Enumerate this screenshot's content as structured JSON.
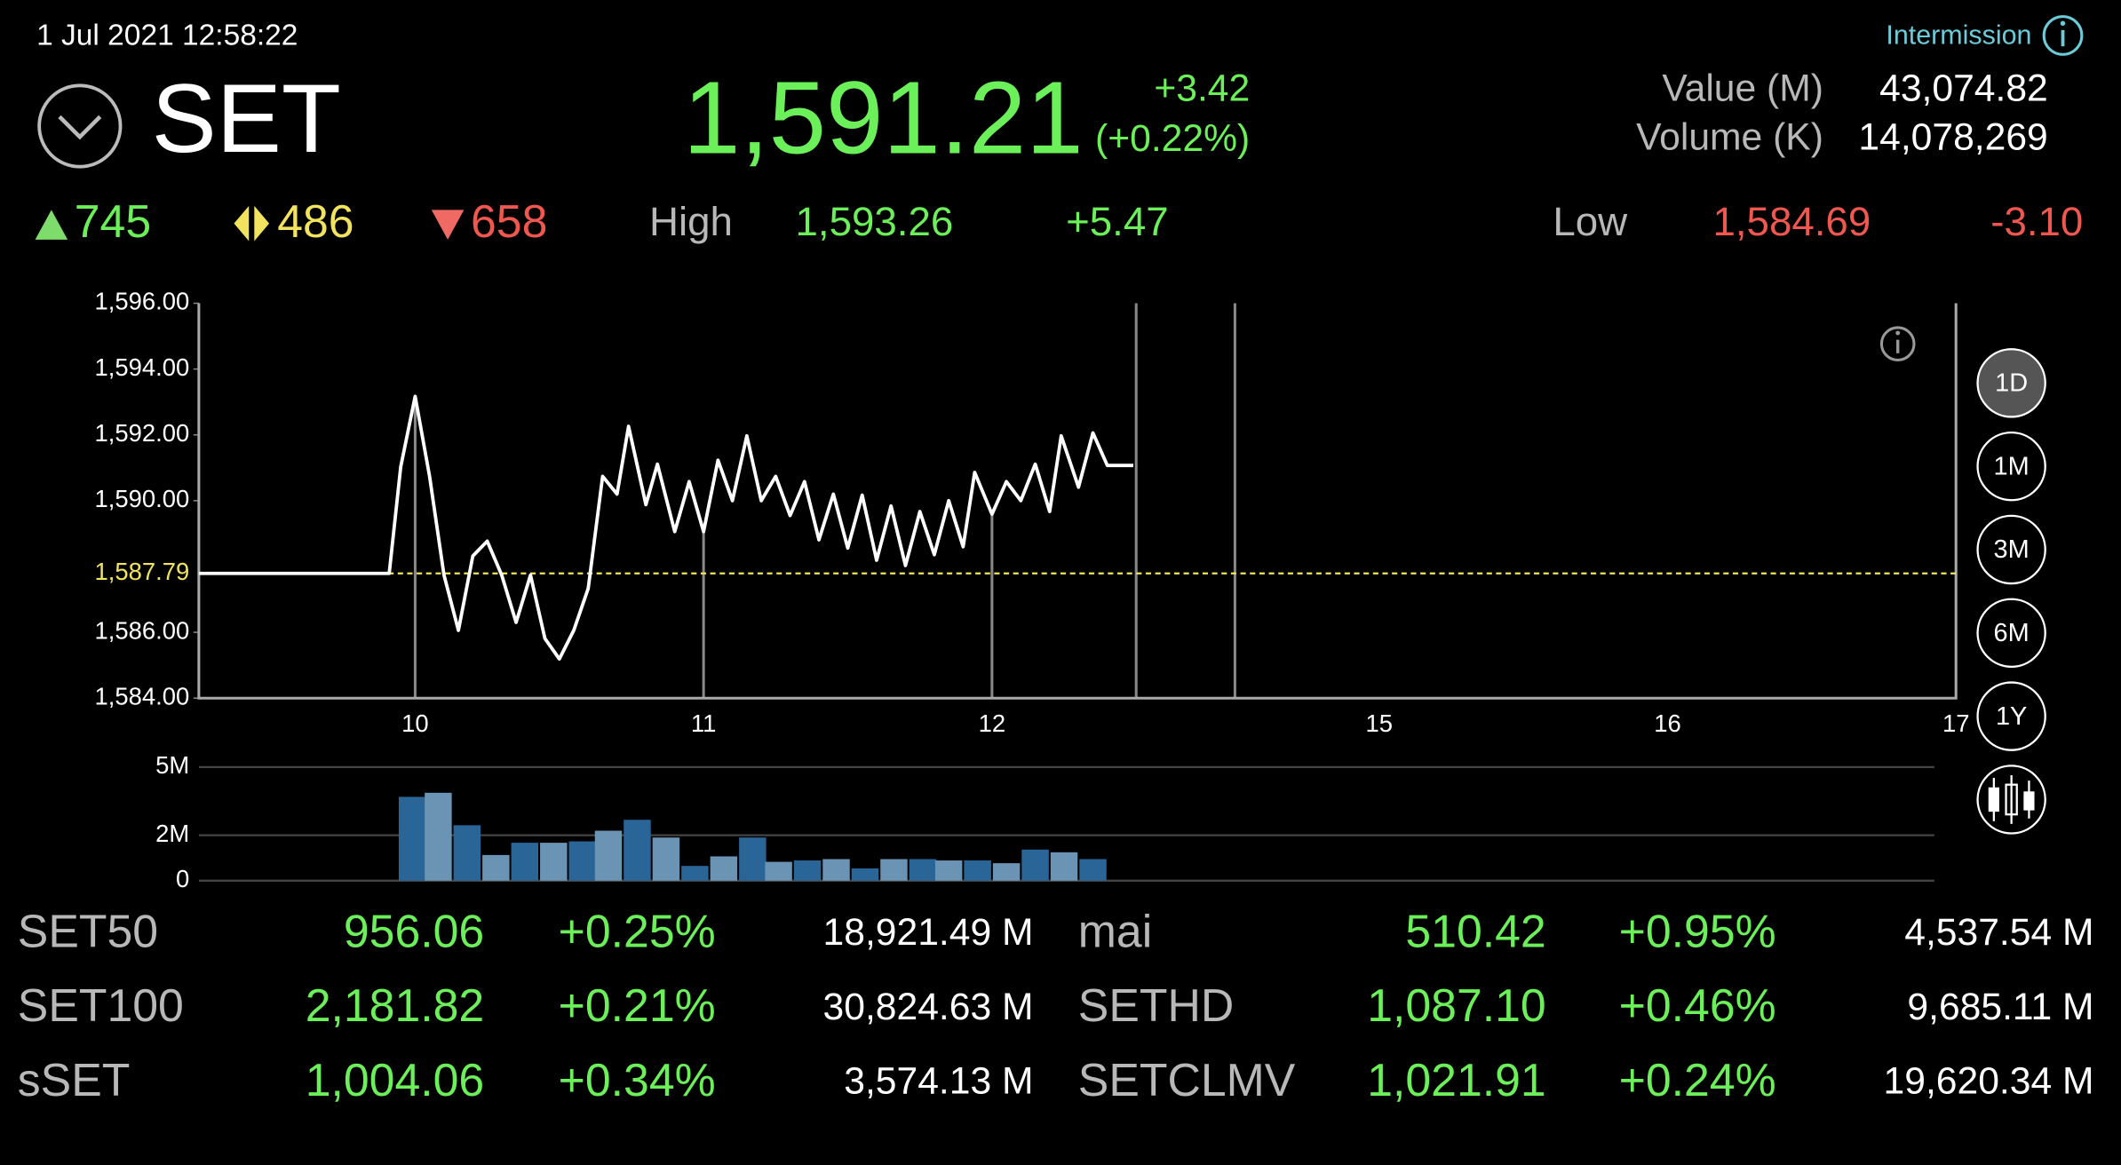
{
  "status_bar": {
    "datetime": "1 Jul 2021 12:58:22",
    "market_status": "Intermission"
  },
  "header": {
    "symbol": "SET",
    "last": "1,591.21",
    "change": "+3.42",
    "change_pct": "(+0.22%)",
    "value_label": "Value (M)",
    "value": "43,074.82",
    "volume_label": "Volume (K)",
    "volume": "14,078,269"
  },
  "breadth": {
    "up": "745",
    "unchanged": "486",
    "down": "658"
  },
  "range": {
    "high_label": "High",
    "high": "1,593.26",
    "high_change": "+5.47",
    "low_label": "Low",
    "low": "1,584.69",
    "low_change": "-3.10"
  },
  "chart_data": [
    {
      "type": "line",
      "x": [
        9.25,
        9.91,
        9.95,
        10.0,
        10.05,
        10.1,
        10.15,
        10.2,
        10.25,
        10.3,
        10.35,
        10.4,
        10.45,
        10.5,
        10.55,
        10.6,
        10.65,
        10.7,
        10.74,
        10.8,
        10.84,
        10.9,
        10.95,
        11.0,
        11.05,
        11.1,
        11.15,
        11.2,
        11.25,
        11.3,
        11.35,
        11.4,
        11.45,
        11.5,
        11.55,
        11.6,
        11.65,
        11.7,
        11.75,
        11.8,
        11.85,
        11.9,
        11.94,
        12.0,
        12.05,
        12.1,
        12.15,
        12.2,
        12.24,
        12.3,
        12.35,
        12.4,
        12.49
      ],
      "series": [
        {
          "color": "#ffffff",
          "values": [
            1587.79,
            1587.79,
            1591.03,
            1593.17,
            1590.74,
            1587.74,
            1586.06,
            1588.32,
            1588.77,
            1587.74,
            1586.3,
            1587.74,
            1585.81,
            1585.19,
            1586.06,
            1587.33,
            1590.74,
            1590.2,
            1592.26,
            1589.88,
            1591.11,
            1589.06,
            1590.58,
            1589.06,
            1591.23,
            1590.0,
            1591.97,
            1590.0,
            1590.74,
            1589.55,
            1590.58,
            1588.81,
            1590.2,
            1588.56,
            1590.17,
            1588.19,
            1589.84,
            1588.03,
            1589.67,
            1588.36,
            1590.0,
            1588.6,
            1590.86,
            1589.59,
            1590.58,
            1590.0,
            1591.11,
            1589.67,
            1591.97,
            1590.41,
            1592.06,
            1591.07,
            1591.07
          ]
        }
      ],
      "xlim": [
        9.25,
        17
      ],
      "xticks": [
        10,
        11,
        12,
        15,
        16,
        17
      ],
      "breaks": [
        12.5,
        14.5
      ],
      "ylim": [
        1584,
        1596
      ],
      "yticks": [
        {
          "value": 1584,
          "label": "1,584.00"
        },
        {
          "value": 1586,
          "label": "1,586.00"
        },
        {
          "value": 1590,
          "label": "1,590.00"
        },
        {
          "value": 1592,
          "label": "1,592.00"
        },
        {
          "value": 1594,
          "label": "1,594.00"
        },
        {
          "value": 1596,
          "label": "1,596.00"
        }
      ],
      "reference": {
        "value": 1587.79,
        "label": "1,587.79",
        "color": "#f2e35e"
      }
    },
    {
      "type": "bar",
      "x": [
        9.99,
        10.08,
        10.18,
        10.28,
        10.38,
        10.48,
        10.58,
        10.67,
        10.77,
        10.87,
        10.97,
        11.07,
        11.17,
        11.26,
        11.36,
        11.46,
        11.56,
        11.66,
        11.76,
        11.85,
        11.95,
        12.05,
        12.15,
        12.25,
        12.35
      ],
      "values": [
        3.69,
        3.87,
        2.44,
        1.13,
        1.67,
        1.67,
        1.73,
        2.2,
        2.68,
        1.9,
        0.65,
        1.07,
        1.9,
        0.83,
        0.89,
        0.95,
        0.54,
        0.95,
        0.95,
        0.89,
        0.89,
        0.77,
        1.37,
        1.25,
        0.95
      ],
      "colors": [
        "#2a6598",
        "#6a93b4"
      ],
      "ylim": [
        0,
        5
      ],
      "yticks": [
        0,
        {
          "value": 2,
          "label": "2M"
        },
        {
          "value": 5,
          "label": "5M"
        }
      ]
    }
  ],
  "timeframes": [
    "1D",
    "1M",
    "3M",
    "6M",
    "1Y"
  ],
  "selected_timeframe": "1D",
  "indices": [
    {
      "name": "SET50",
      "value": "956.06",
      "change_pct": "+0.25%",
      "turnover": "18,921.49 M"
    },
    {
      "name": "SET100",
      "value": "2,181.82",
      "change_pct": "+0.21%",
      "turnover": "30,824.63 M"
    },
    {
      "name": "sSET",
      "value": "1,004.06",
      "change_pct": "+0.34%",
      "turnover": "3,574.13 M"
    },
    {
      "name": "mai",
      "value": "510.42",
      "change_pct": "+0.95%",
      "turnover": "4,537.54 M"
    },
    {
      "name": "SETHD",
      "value": "1,087.10",
      "change_pct": "+0.46%",
      "turnover": "9,685.11 M"
    },
    {
      "name": "SETCLMV",
      "value": "1,021.91",
      "change_pct": "+0.24%",
      "turnover": "19,620.34 M"
    }
  ]
}
